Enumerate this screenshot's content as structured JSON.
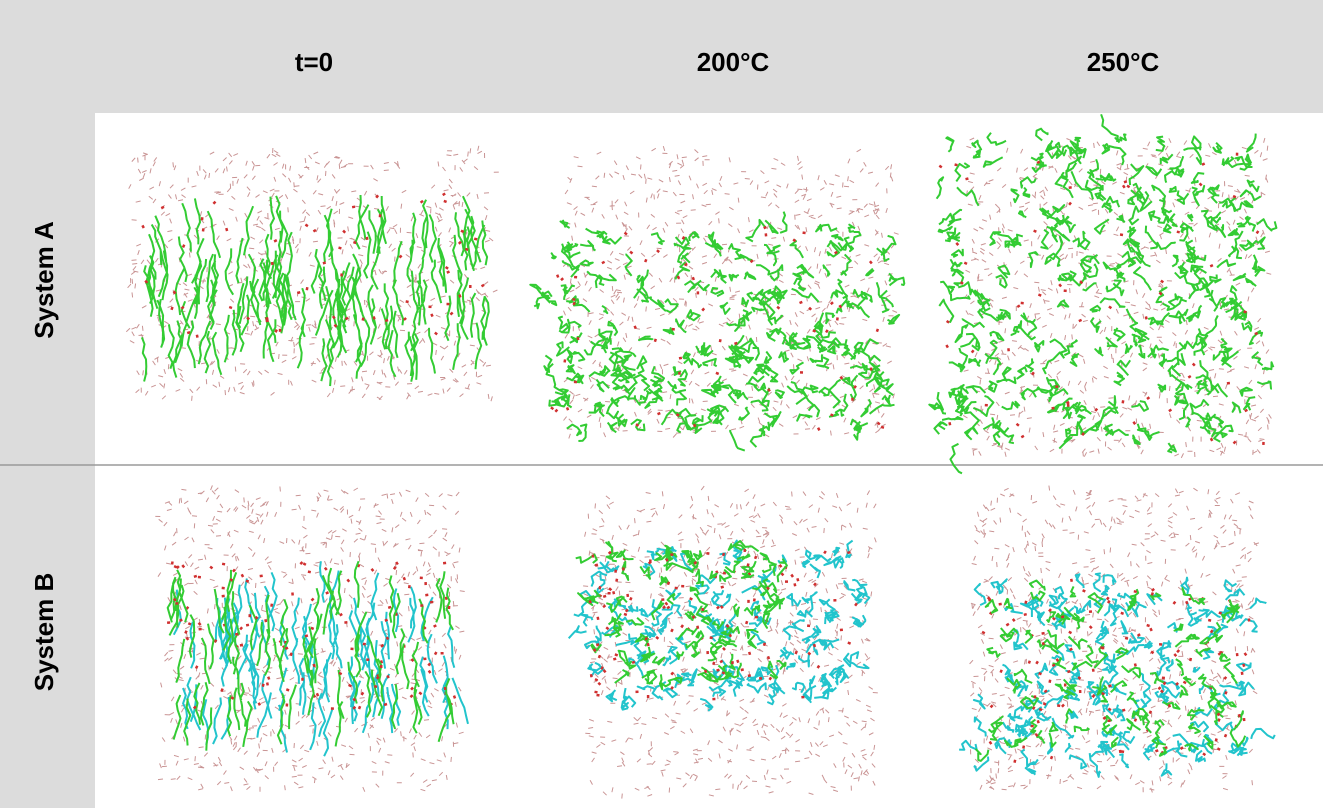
{
  "columns": [
    "t=0",
    "200°C",
    "250°C"
  ],
  "rows": [
    "System A",
    "System B"
  ]
}
